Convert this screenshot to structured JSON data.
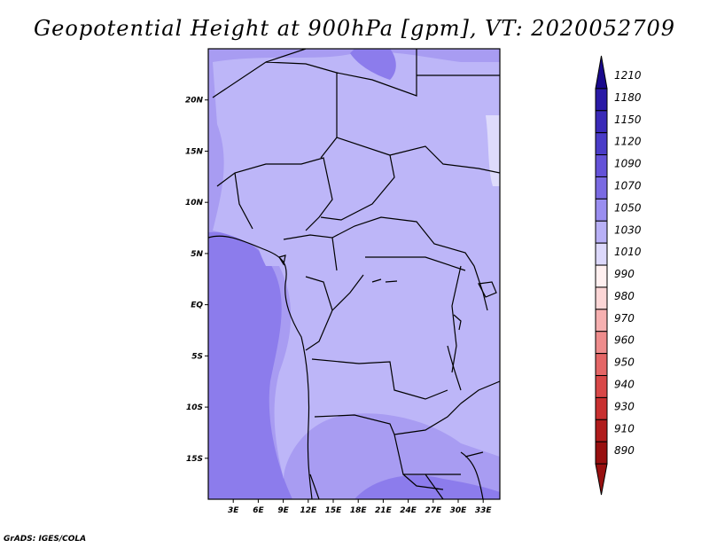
{
  "title": "Geopotential Height at 900hPa [gpm], VT: 2020052709",
  "footer": "GrADS: IGES/COLA",
  "map": {
    "lat_labels": [
      "20N",
      "15N",
      "10N",
      "5N",
      "EQ",
      "5S",
      "10S",
      "15S"
    ],
    "lat_values": [
      20,
      15,
      10,
      5,
      0,
      -5,
      -10,
      -15
    ],
    "lon_labels": [
      "3E",
      "6E",
      "9E",
      "12E",
      "15E",
      "18E",
      "21E",
      "24E",
      "27E",
      "30E",
      "33E"
    ],
    "lon_values": [
      3,
      6,
      9,
      12,
      15,
      18,
      21,
      24,
      27,
      30,
      33
    ],
    "extent": {
      "lon_min": 0,
      "lon_max": 35,
      "lat_min": -19,
      "lat_max": 25
    }
  },
  "colorbar": {
    "levels": [
      "1210",
      "1180",
      "1150",
      "1120",
      "1090",
      "1070",
      "1050",
      "1030",
      "1010",
      "990",
      "980",
      "970",
      "960",
      "950",
      "940",
      "930",
      "910",
      "890"
    ],
    "colors": [
      "#1a0a8c",
      "#2a1aa6",
      "#3a2ab8",
      "#4a3cc8",
      "#6452d8",
      "#7a6ae2",
      "#9a8ef0",
      "#b8b0f6",
      "#dcd8fb",
      "#fff0f0",
      "#fcd6d6",
      "#f6b0b0",
      "#ee8c8c",
      "#e46666",
      "#d84848",
      "#c83030",
      "#b01c1c",
      "#981010"
    ]
  },
  "shading": {
    "c1090": "#6452d8",
    "c1070": "#8c7cec",
    "c1050": "#a89cf2",
    "c1030": "#bdb6f8",
    "c1010": "#dedbfc"
  }
}
